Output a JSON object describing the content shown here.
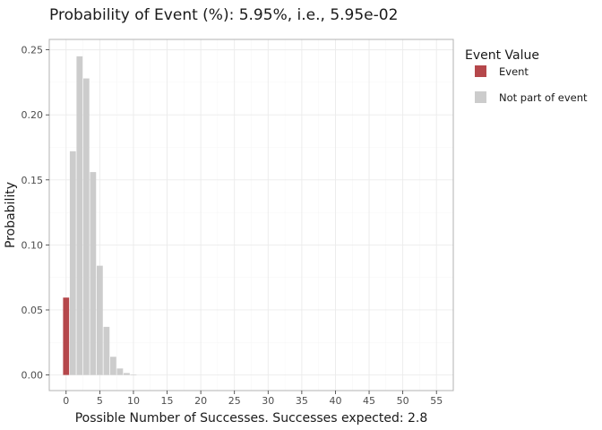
{
  "chart_data": {
    "type": "bar",
    "title": "Probability of Event (%): 5.95%, i.e., 5.95e-02",
    "xlabel": "Possible Number of Successes. Successes expected: 2.8",
    "ylabel": "Probability",
    "xlim": [
      -2.5,
      57.5
    ],
    "ylim": [
      -0.012,
      0.258
    ],
    "x_ticks": [
      0,
      5,
      10,
      15,
      20,
      25,
      30,
      35,
      40,
      45,
      50,
      55
    ],
    "y_ticks": [
      0.0,
      0.05,
      0.1,
      0.15,
      0.2,
      0.25
    ],
    "y_tick_labels": [
      "0.00",
      "0.05",
      "0.10",
      "0.15",
      "0.20",
      "0.25"
    ],
    "grid": true,
    "legend": {
      "title": "Event Value",
      "placement": "right",
      "entries": [
        {
          "label": "Event",
          "color": "#b5474b"
        },
        {
          "label": "Not part of event",
          "color": "#cccccc"
        }
      ]
    },
    "series": [
      {
        "name": "Event",
        "color": "#b5474b",
        "x": [
          0
        ],
        "values": [
          0.0595
        ]
      },
      {
        "name": "Not part of event",
        "color": "#cccccc",
        "x": [
          1,
          2,
          3,
          4,
          5,
          6,
          7,
          8,
          9,
          10
        ],
        "values": [
          0.172,
          0.245,
          0.228,
          0.156,
          0.084,
          0.037,
          0.014,
          0.005,
          0.0015,
          0.0004
        ]
      }
    ]
  }
}
